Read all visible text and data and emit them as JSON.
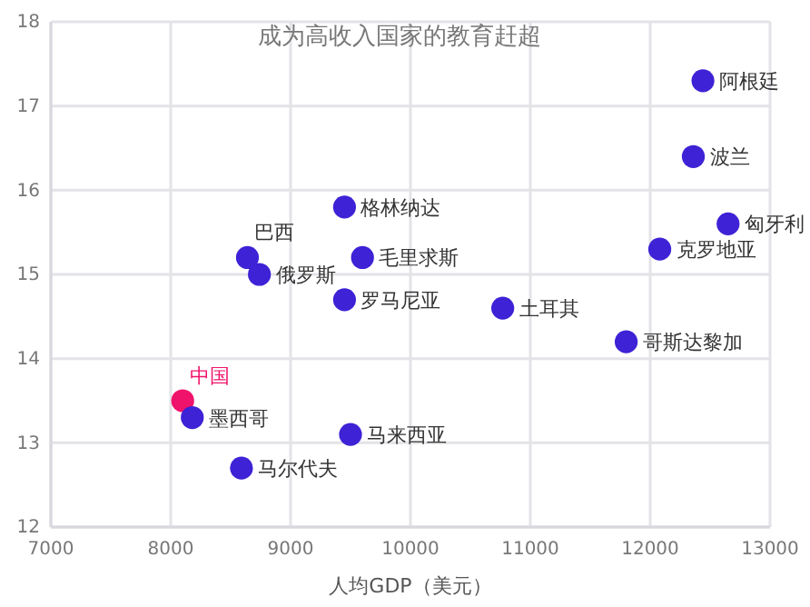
{
  "chart_data": {
    "type": "scatter",
    "title": "成为高收入国家的教育赶超",
    "xlabel": "人均GDP（美元）",
    "xlim": [
      7000,
      13000
    ],
    "xticks": [
      7000,
      8000,
      9000,
      10000,
      11000,
      12000,
      13000
    ],
    "ylim": [
      12,
      18
    ],
    "yticks": [
      12,
      13,
      14,
      15,
      16,
      17,
      18
    ],
    "grid": true,
    "marker": "circle",
    "series": [
      {
        "name": "阿根廷",
        "color": "#3d22d6",
        "x": [
          12440
        ],
        "values": [
          17.3
        ]
      },
      {
        "name": "波兰",
        "color": "#3d22d6",
        "x": [
          12360
        ],
        "values": [
          16.4
        ]
      },
      {
        "name": "匈牙利",
        "color": "#3d22d6",
        "x": [
          12650
        ],
        "values": [
          15.6
        ]
      },
      {
        "name": "克罗地亚",
        "color": "#3d22d6",
        "x": [
          12080
        ],
        "values": [
          15.3
        ]
      },
      {
        "name": "格林纳达",
        "color": "#3d22d6",
        "x": [
          9450
        ],
        "values": [
          15.8
        ]
      },
      {
        "name": "巴西",
        "color": "#3d22d6",
        "x": [
          8640
        ],
        "values": [
          15.2
        ]
      },
      {
        "name": "毛里求斯",
        "color": "#3d22d6",
        "x": [
          9600
        ],
        "values": [
          15.2
        ]
      },
      {
        "name": "俄罗斯",
        "color": "#3d22d6",
        "x": [
          8740
        ],
        "values": [
          15.0
        ]
      },
      {
        "name": "罗马尼亚",
        "color": "#3d22d6",
        "x": [
          9450
        ],
        "values": [
          14.7
        ]
      },
      {
        "name": "土耳其",
        "color": "#3d22d6",
        "x": [
          10770
        ],
        "values": [
          14.6
        ]
      },
      {
        "name": "哥斯达黎加",
        "color": "#3d22d6",
        "x": [
          11800
        ],
        "values": [
          14.2
        ]
      },
      {
        "name": "中国",
        "color": "#f0136b",
        "x": [
          8100
        ],
        "values": [
          13.5
        ]
      },
      {
        "name": "墨西哥",
        "color": "#3d22d6",
        "x": [
          8180
        ],
        "values": [
          13.3
        ]
      },
      {
        "name": "马来西亚",
        "color": "#3d22d6",
        "x": [
          9500
        ],
        "values": [
          13.1
        ]
      },
      {
        "name": "马尔代夫",
        "color": "#3d22d6",
        "x": [
          8590
        ],
        "values": [
          12.7
        ]
      }
    ]
  }
}
